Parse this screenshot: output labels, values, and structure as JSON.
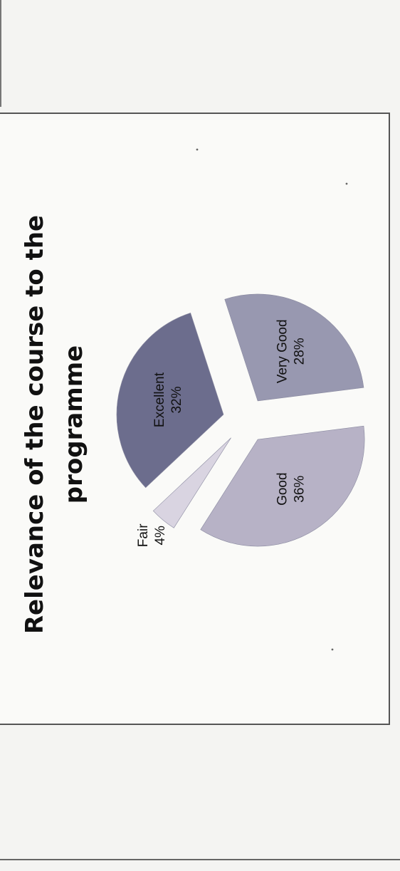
{
  "chart_data": {
    "type": "pie",
    "title": "Relevance of the course to the programme",
    "title_lines": [
      "Relevance of the course to the",
      "programme"
    ],
    "slices": [
      {
        "name": "Excellent",
        "value": 32,
        "label": "32%",
        "color": "#6c6d8d"
      },
      {
        "name": "Very Good",
        "value": 28,
        "label": "28%",
        "color": "#9898b0"
      },
      {
        "name": "Good",
        "value": 36,
        "label": "36%",
        "color": "#b7b2c6"
      },
      {
        "name": "Fair",
        "value": 4,
        "label": "4%",
        "color": "#d9d4e1"
      }
    ],
    "exploded": true,
    "legend": "none",
    "orientation": "rotated-90-ccw"
  }
}
